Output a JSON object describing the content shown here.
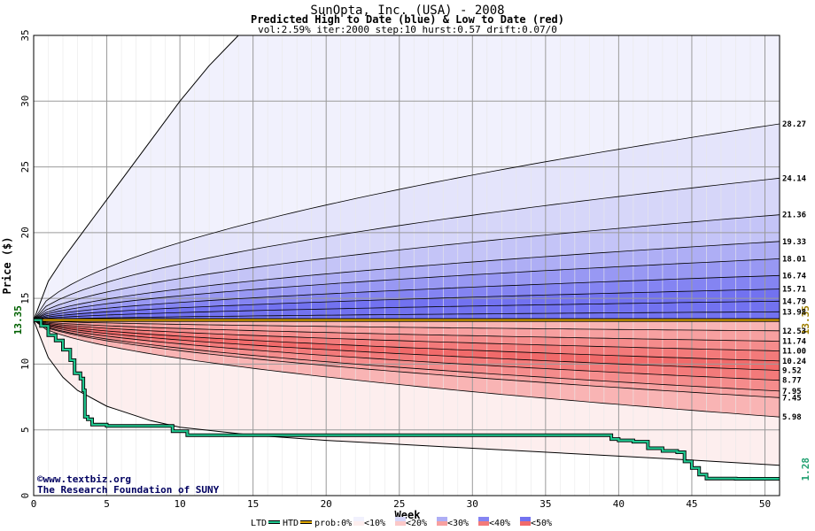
{
  "chart_data": {
    "type": "area",
    "title": "SunOpta, Inc. (USA) - 2008",
    "subtitle": "Predicted High to Date (blue) &  Low to Date (red)",
    "params": "vol:2.59% iter:2000 step:10 hurst:0.57 drift:0.07/0",
    "xlabel": "Week",
    "ylabel": "Price ($)",
    "xlim": [
      0,
      51
    ],
    "ylim": [
      0,
      35
    ],
    "xticks": [
      0,
      5,
      10,
      15,
      20,
      25,
      30,
      35,
      40,
      45,
      50
    ],
    "yticks": [
      0,
      5,
      10,
      15,
      20,
      25,
      30,
      35
    ],
    "grid": true,
    "start_price": 13.35,
    "start_price_label": "13.35",
    "current_level": 13.35,
    "current_level_label": "13.35",
    "last_low_label": "1.28",
    "high_quantiles": [
      {
        "end": 28.27,
        "label": "28.27"
      },
      {
        "end": 24.14,
        "label": "24.14"
      },
      {
        "end": 21.36,
        "label": "21.36"
      },
      {
        "end": 19.33,
        "label": "19.33"
      },
      {
        "end": 18.01,
        "label": "18.01"
      },
      {
        "end": 16.74,
        "label": "16.74"
      },
      {
        "end": 15.71,
        "label": "15.71"
      },
      {
        "end": 14.79,
        "label": "14.79"
      },
      {
        "end": 13.98,
        "label": "13.98"
      }
    ],
    "low_quantiles": [
      {
        "end": 12.53,
        "label": "12.53"
      },
      {
        "end": 11.74,
        "label": "11.74"
      },
      {
        "end": 11.0,
        "label": "11.00"
      },
      {
        "end": 10.24,
        "label": "10.24"
      },
      {
        "end": 9.52,
        "label": "9.52"
      },
      {
        "end": 8.77,
        "label": "8.77"
      },
      {
        "end": 7.95,
        "label": "7.95"
      },
      {
        "end": 7.45,
        "label": "7.45"
      },
      {
        "end": 5.98,
        "label": "5.98"
      }
    ],
    "outer_high_curve": {
      "x": [
        0,
        1,
        2,
        3,
        4,
        5,
        6,
        8,
        10,
        12,
        14
      ],
      "y": [
        13.35,
        16.3,
        18.0,
        19.5,
        21.0,
        22.5,
        24.0,
        27.0,
        30.0,
        32.7,
        35.0
      ]
    },
    "outer_low_curve": {
      "x": [
        0,
        1,
        2,
        3,
        5,
        8,
        10,
        15,
        20,
        30,
        40,
        45,
        51
      ],
      "y": [
        13.35,
        10.5,
        9.0,
        8.0,
        6.8,
        5.7,
        5.2,
        4.6,
        4.2,
        3.6,
        3.0,
        2.7,
        2.3
      ]
    },
    "ltd_series": {
      "name": "LTD",
      "color": "#20c890",
      "x": [
        0,
        0.5,
        1.0,
        1.5,
        2.0,
        2.5,
        2.8,
        3.2,
        3.4,
        3.5,
        3.7,
        4.0,
        5.0,
        7.0,
        9.0,
        9.5,
        10.5,
        15,
        20,
        25,
        30,
        35,
        39,
        39.5,
        40,
        41,
        42,
        43,
        44,
        44.5,
        45,
        45.5,
        46,
        48,
        51
      ],
      "y": [
        13.35,
        12.9,
        12.2,
        11.8,
        11.1,
        10.3,
        9.3,
        8.9,
        8.0,
        6.0,
        5.8,
        5.4,
        5.3,
        5.3,
        5.3,
        4.9,
        4.6,
        4.6,
        4.6,
        4.6,
        4.6,
        4.6,
        4.6,
        4.3,
        4.2,
        4.1,
        3.6,
        3.4,
        3.3,
        2.6,
        2.1,
        1.6,
        1.3,
        1.28,
        1.28
      ]
    },
    "htd_series": {
      "name": "HTD",
      "color": "#e0a800",
      "y": 13.35
    },
    "band_colors": {
      "blue": [
        "#f1f1fd",
        "#e4e4fb",
        "#d6d6f9",
        "#c4c4f7",
        "#aeaef5",
        "#9898f3",
        "#8484f2",
        "#7272f0"
      ],
      "red": [
        "#fdeeee",
        "#fcdcdc",
        "#fbc8c8",
        "#f9b4b4",
        "#f7a0a0",
        "#f58c8c",
        "#f37a7a",
        "#f16a6a"
      ]
    },
    "legend": {
      "ltd": "LTD",
      "htd": "HTD",
      "prob": "prob:0%",
      "items": [
        "<10%",
        "<20%",
        "<30%",
        "<40%",
        "<50%"
      ]
    },
    "credits": [
      "©www.textbiz.org",
      "The Research Foundation of SUNY"
    ]
  }
}
